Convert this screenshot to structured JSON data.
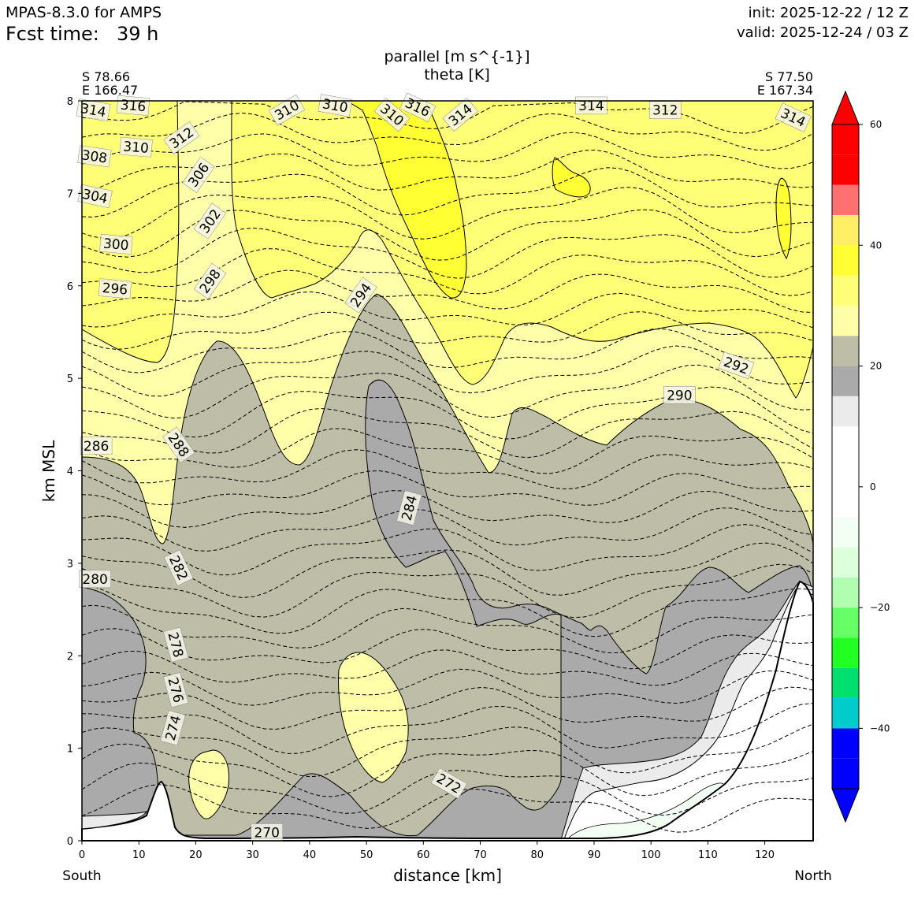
{
  "header": {
    "model": "MPAS-8.3.0 for AMPS",
    "fcst_label": "Fcst time:",
    "fcst_value": "39 h",
    "init": "init: 2025-12-22 / 12 Z",
    "valid": "valid: 2025-12-24 / 03 Z"
  },
  "chart_data": {
    "type": "cross-section",
    "title_line1": "parallel [m s^{-1}]",
    "title_line2": "theta [K]",
    "left_endpoint": {
      "lat": "S 78.66",
      "lon": "E 166.47",
      "side": "South"
    },
    "right_endpoint": {
      "lat": "S 77.50",
      "lon": "E 167.34",
      "side": "North"
    },
    "xlabel": "distance [km]",
    "ylabel": "km MSL",
    "xlim": [
      0,
      128.5
    ],
    "ylim": [
      0,
      8
    ],
    "xticks": [
      0,
      10,
      20,
      30,
      40,
      50,
      60,
      70,
      80,
      90,
      100,
      110,
      120
    ],
    "yticks": [
      0,
      1,
      2,
      3,
      4,
      5,
      6,
      7,
      8
    ],
    "colorbar": {
      "levels": [
        -60,
        -50,
        -45,
        -40,
        -35,
        -30,
        -25,
        -20,
        -15,
        -10,
        -5,
        0,
        5,
        10,
        15,
        20,
        25,
        30,
        35,
        40,
        45,
        50,
        55,
        60
      ],
      "colors": [
        "#0000ff",
        "#0000ff",
        "#0000ff",
        "#00cccc",
        "#00e070",
        "#22ff22",
        "#66ff66",
        "#b0ffb0",
        "#dcffdc",
        "#f2fff2",
        "#ffffff",
        "#ffffff",
        "#ffffff",
        "#ebebeb",
        "#aaaaaa",
        "#bdbda8",
        "#ffffaa",
        "#ffff77",
        "#ffff33",
        "#ffee66",
        "#ff7070",
        "#ff0000",
        "#ff0000"
      ],
      "extend": "both",
      "tick_values": [
        -40,
        -20,
        0,
        20,
        40,
        60
      ],
      "tick_labels": [
        "−40",
        "−20",
        "0",
        "20",
        "40",
        "60"
      ]
    },
    "theta_contour_labels": [
      {
        "text": "314",
        "x": 2,
        "y": 7.9,
        "rot": 10
      },
      {
        "text": "316",
        "x": 9,
        "y": 7.95,
        "rot": 5
      },
      {
        "text": "312",
        "x": 17.5,
        "y": 7.6,
        "rot": -35
      },
      {
        "text": "310",
        "x": 9.5,
        "y": 7.5,
        "rot": 5
      },
      {
        "text": "308",
        "x": 2.2,
        "y": 7.4,
        "rot": 8
      },
      {
        "text": "306",
        "x": 20.5,
        "y": 7.2,
        "rot": -55
      },
      {
        "text": "304",
        "x": 2.3,
        "y": 6.97,
        "rot": 12
      },
      {
        "text": "302",
        "x": 22.5,
        "y": 6.7,
        "rot": -55
      },
      {
        "text": "300",
        "x": 6,
        "y": 6.45,
        "rot": 5
      },
      {
        "text": "298",
        "x": 22.5,
        "y": 6.05,
        "rot": -55
      },
      {
        "text": "296",
        "x": 5.8,
        "y": 5.97,
        "rot": 5
      },
      {
        "text": "310",
        "x": 36,
        "y": 7.9,
        "rot": -30
      },
      {
        "text": "310",
        "x": 44.5,
        "y": 7.95,
        "rot": 10
      },
      {
        "text": "310",
        "x": 54.5,
        "y": 7.85,
        "rot": 40
      },
      {
        "text": "316",
        "x": 59,
        "y": 7.93,
        "rot": 25
      },
      {
        "text": "314",
        "x": 66.5,
        "y": 7.85,
        "rot": -40
      },
      {
        "text": "294",
        "x": 49,
        "y": 5.9,
        "rot": -55
      },
      {
        "text": "314",
        "x": 89.5,
        "y": 7.95,
        "rot": 0
      },
      {
        "text": "312",
        "x": 102.5,
        "y": 7.9,
        "rot": 0
      },
      {
        "text": "314",
        "x": 125,
        "y": 7.82,
        "rot": 25
      },
      {
        "text": "292",
        "x": 115,
        "y": 5.14,
        "rot": 20
      },
      {
        "text": "290",
        "x": 105,
        "y": 4.82,
        "rot": 0
      },
      {
        "text": "286",
        "x": 2.5,
        "y": 4.27,
        "rot": 0
      },
      {
        "text": "288",
        "x": 17,
        "y": 4.28,
        "rot": 55
      },
      {
        "text": "284",
        "x": 57.5,
        "y": 3.6,
        "rot": -75
      },
      {
        "text": "282",
        "x": 17,
        "y": 2.95,
        "rot": 65
      },
      {
        "text": "280",
        "x": 2.3,
        "y": 2.83,
        "rot": 0
      },
      {
        "text": "278",
        "x": 16.5,
        "y": 2.12,
        "rot": 75
      },
      {
        "text": "276",
        "x": 16.5,
        "y": 1.63,
        "rot": 75
      },
      {
        "text": "274",
        "x": 16,
        "y": 1.22,
        "rot": -75
      },
      {
        "text": "272",
        "x": 64.5,
        "y": 0.62,
        "rot": 30
      },
      {
        "text": "270",
        "x": 32.5,
        "y": 0.09,
        "rot": 0
      }
    ]
  }
}
